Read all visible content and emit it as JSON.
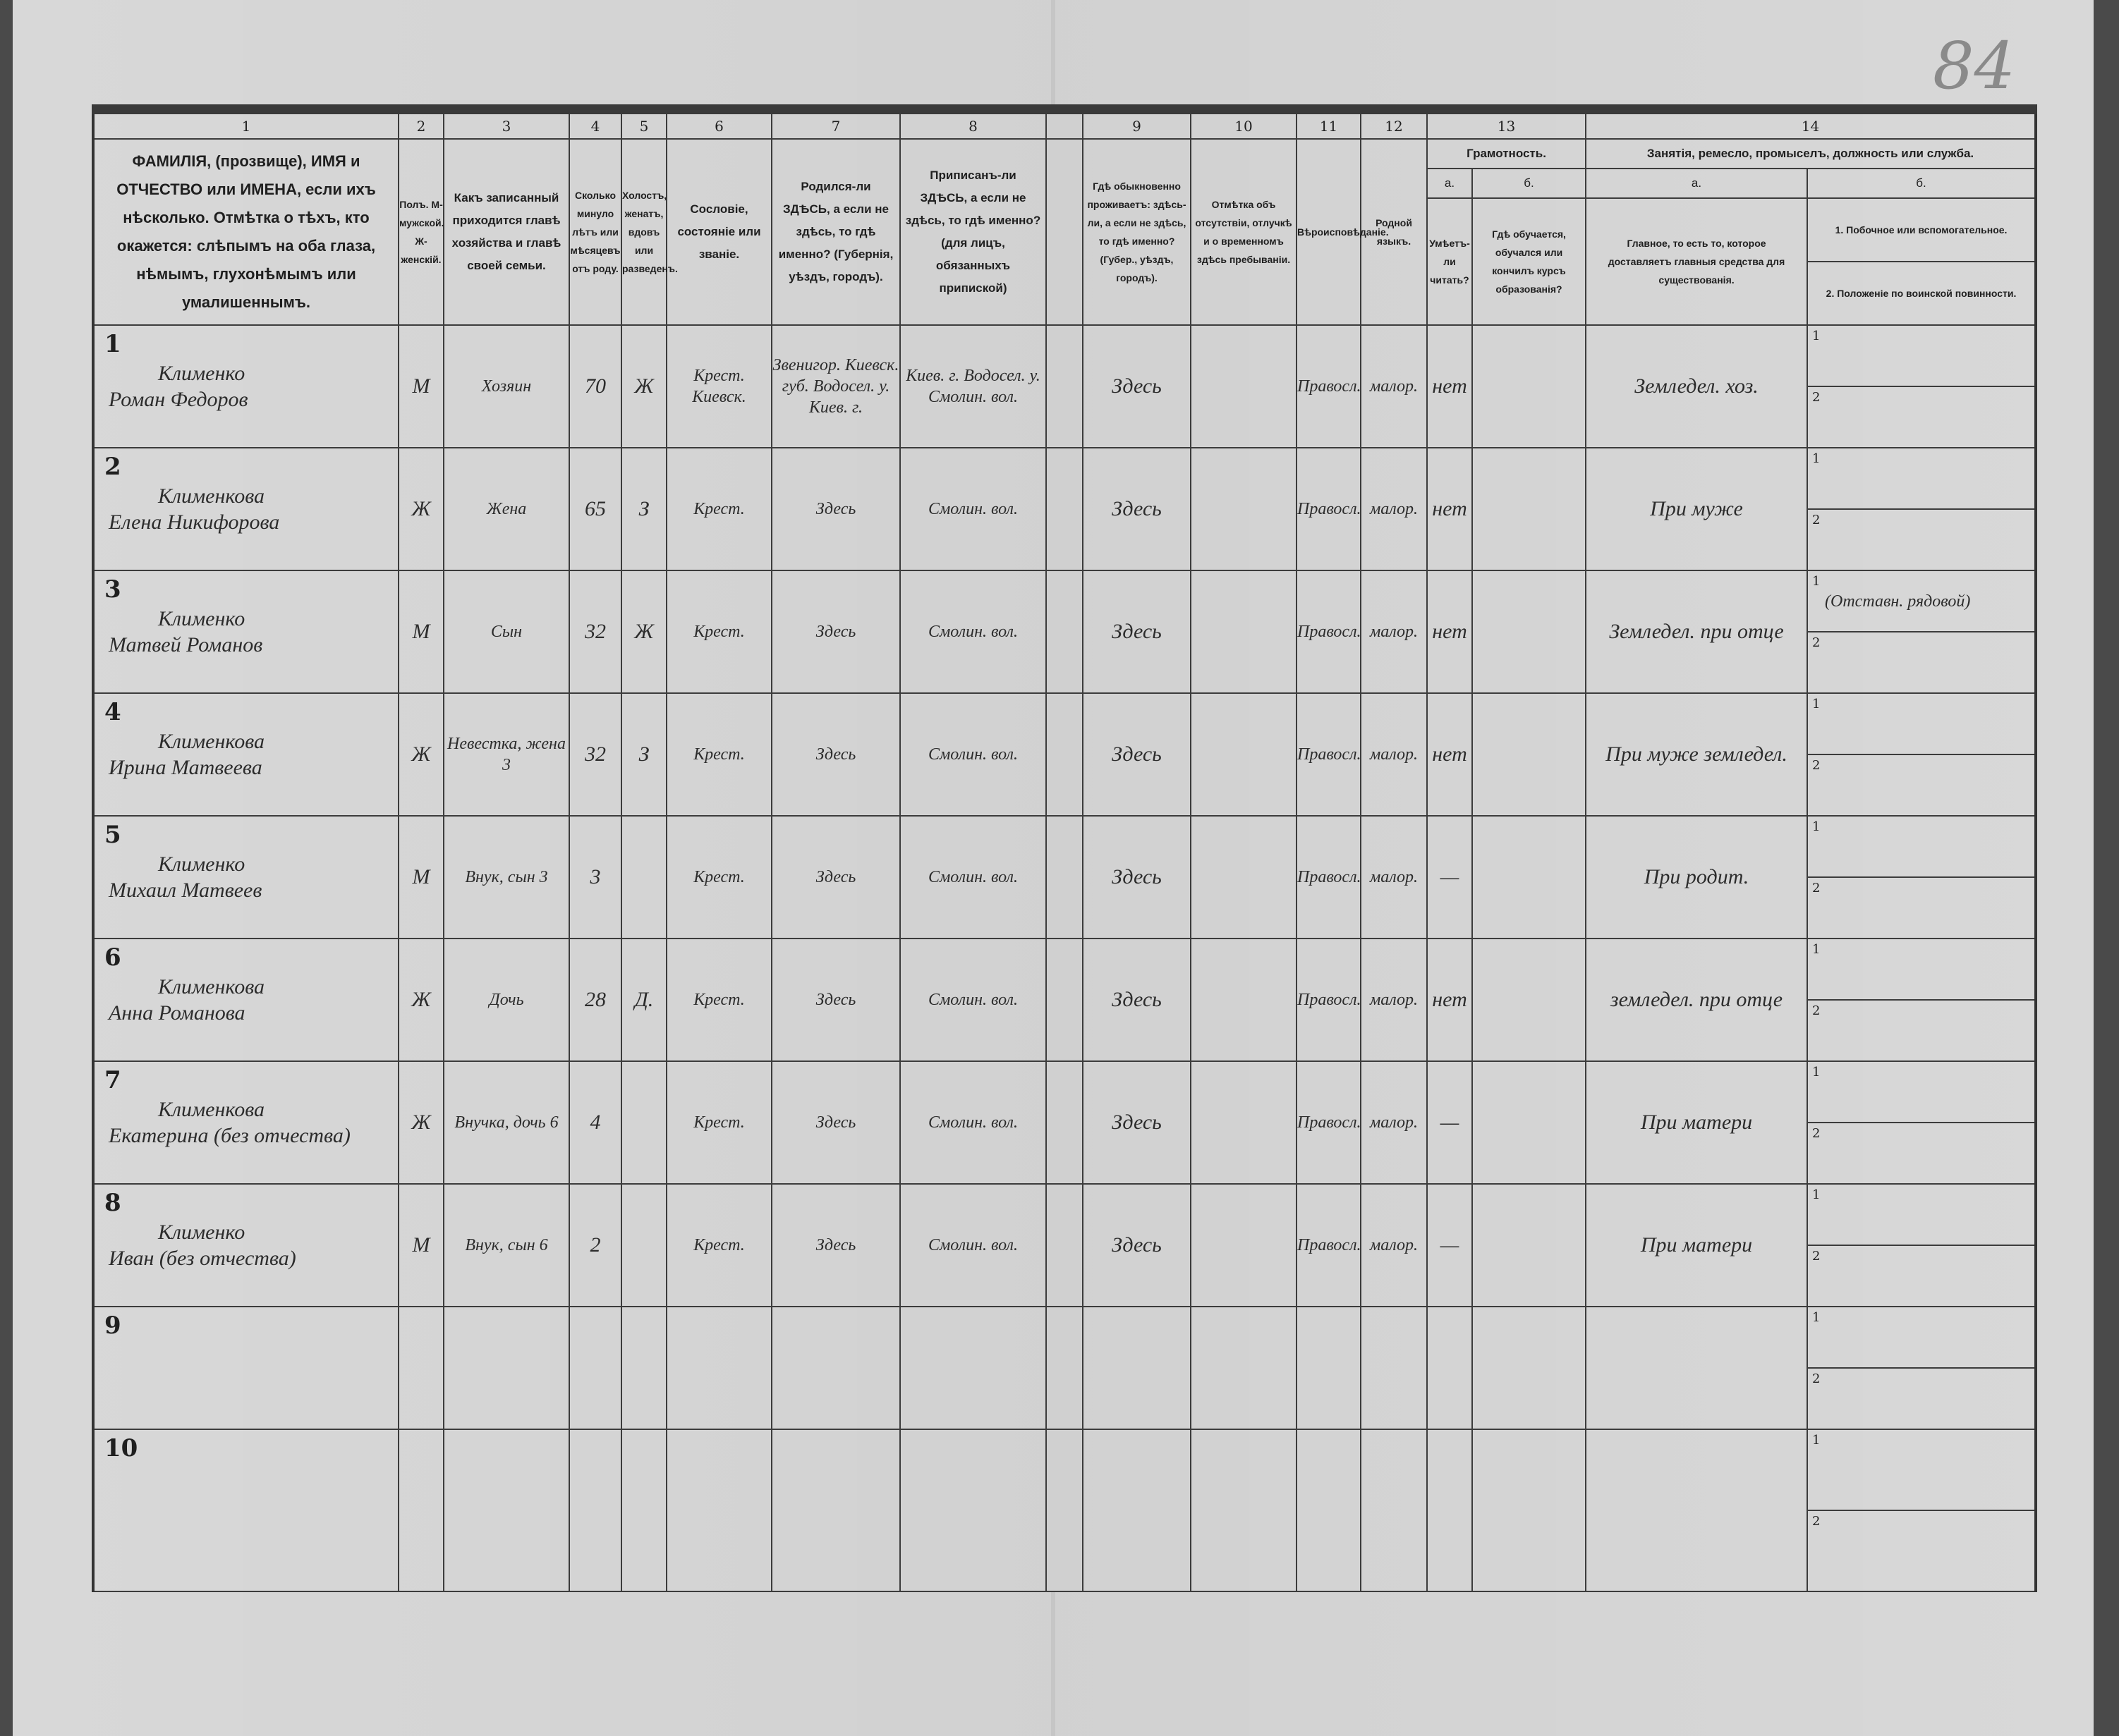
{
  "page_number": "84",
  "header": {
    "column_numbers": [
      "1",
      "2",
      "3",
      "4",
      "5",
      "6",
      "7",
      "8",
      "",
      "9",
      "10",
      "11",
      "12",
      "13",
      "14"
    ],
    "col1": "ФАМИЛІЯ, (прозвище), ИМЯ и ОТЧЕСТВО или ИМЕНА, если ихъ нѣсколько. Отмѣтка о тѣхъ, кто окажется: слѣпымъ на оба глаза, нѣмымъ, глухонѣмымъ или умалишеннымъ.",
    "col2": "Полъ. М-мужской. Ж-женскій.",
    "col3": "Какъ записанный приходится главѣ хозяйства и главѣ своей семьи.",
    "col4": "Сколько минуло лѣтъ или мѣсяцевъ отъ роду.",
    "col5": "Холостъ, женатъ, вдовъ или разведенъ.",
    "col6": "Сословіе, состояніе или званіе.",
    "col7": "Родился-ли ЗДѢСЬ, а если не здѣсь, то гдѣ именно? (Губернія, уѣздъ, городъ).",
    "col8": "Приписанъ-ли ЗДѢСЬ, а если не здѣсь, то гдѣ именно? (для лицъ, обязанныхъ припиской)",
    "col9": "Гдѣ обыкновенно проживаетъ: здѣсь-ли, а если не здѣсь, то гдѣ именно? (Губер., уѣздъ, городъ).",
    "col10": "Отмѣтка объ отсутствіи, отлучкѣ и о временномъ здѣсь пребываніи.",
    "col11": "Вѣроисповѣданіе.",
    "col12": "Родной языкъ.",
    "col13_title": "Грамотность.",
    "col13a_label": "а.",
    "col13b_label": "б.",
    "col13a": "Умѣетъ-ли читать?",
    "col13b": "Гдѣ обучается, обучался или кончилъ курсъ образованія?",
    "col14_title": "Занятія, ремесло, промыселъ, должность или служба.",
    "col14a_label": "а.",
    "col14b_label": "б.",
    "col14a": "Главное, то есть то, которое доставляетъ главныя средства для существованія.",
    "col14b1": "1. Побочное или вспомогательное.",
    "col14b2": "2. Положеніе по воинской повинности."
  },
  "sub_labels": [
    "1",
    "2"
  ],
  "rows": [
    {
      "no": "1",
      "surname": "Клименко",
      "name": "Роман Федоров",
      "sex": "М",
      "relation": "Хозяин",
      "age": "70",
      "marital": "Ж",
      "estate": "Крест. Киевск.",
      "born": "Звенигор. Киевск. губ. Водосел. у. Киев. г.",
      "registered": "Киев. г. Водосел. у. Смолин. вол.",
      "residence": "Здесь",
      "absence": "",
      "religion": "Правосл.",
      "language": "малор.",
      "literate": "нет",
      "education": "",
      "occupation": "Земледел. хоз.",
      "side": "",
      "military": ""
    },
    {
      "no": "2",
      "surname": "Клименкова",
      "name": "Елена Никифорова",
      "sex": "Ж",
      "relation": "Жена",
      "age": "65",
      "marital": "З",
      "estate": "Крест.",
      "born": "Здесь",
      "registered": "Смолин. вол.",
      "residence": "Здесь",
      "absence": "",
      "religion": "Правосл.",
      "language": "малор.",
      "literate": "нет",
      "education": "",
      "occupation": "При муже",
      "side": "",
      "military": ""
    },
    {
      "no": "3",
      "surname": "Клименко",
      "name": "Матвей Романов",
      "sex": "М",
      "relation": "Сын",
      "age": "32",
      "marital": "Ж",
      "estate": "Крест.",
      "born": "Здесь",
      "registered": "Смолин. вол.",
      "residence": "Здесь",
      "absence": "",
      "religion": "Правосл.",
      "language": "малор.",
      "literate": "нет",
      "education": "",
      "occupation": "Земледел. при отце",
      "side": "(Отставн. рядовой)",
      "military": ""
    },
    {
      "no": "4",
      "surname": "Клименкова",
      "name": "Ирина Матвеева",
      "sex": "Ж",
      "relation": "Невестка, жена 3",
      "age": "32",
      "marital": "З",
      "estate": "Крест.",
      "born": "Здесь",
      "registered": "Смолин. вол.",
      "residence": "Здесь",
      "absence": "",
      "religion": "Правосл.",
      "language": "малор.",
      "literate": "нет",
      "education": "",
      "occupation": "При муже земледел.",
      "side": "",
      "military": ""
    },
    {
      "no": "5",
      "surname": "Клименко",
      "name": "Михаил Матвеев",
      "sex": "М",
      "relation": "Внук, сын 3",
      "age": "3",
      "marital": "",
      "estate": "Крест.",
      "born": "Здесь",
      "registered": "Смолин. вол.",
      "residence": "Здесь",
      "absence": "",
      "religion": "Правосл.",
      "language": "малор.",
      "literate": "—",
      "education": "",
      "occupation": "При родит.",
      "side": "",
      "military": ""
    },
    {
      "no": "6",
      "surname": "Клименкова",
      "name": "Анна Романова",
      "sex": "Ж",
      "relation": "Дочь",
      "age": "28",
      "marital": "Д.",
      "estate": "Крест.",
      "born": "Здесь",
      "registered": "Смолин. вол.",
      "residence": "Здесь",
      "absence": "",
      "religion": "Правосл.",
      "language": "малор.",
      "literate": "нет",
      "education": "",
      "occupation": "земледел. при отце",
      "side": "",
      "military": ""
    },
    {
      "no": "7",
      "surname": "Клименкова",
      "name": "Екатерина (без отчества)",
      "sex": "Ж",
      "relation": "Внучка, дочь 6",
      "age": "4",
      "marital": "",
      "estate": "Крест.",
      "born": "Здесь",
      "registered": "Смолин. вол.",
      "residence": "Здесь",
      "absence": "",
      "religion": "Правосл.",
      "language": "малор.",
      "literate": "—",
      "education": "",
      "occupation": "При матери",
      "side": "",
      "military": ""
    },
    {
      "no": "8",
      "surname": "Клименко",
      "name": "Иван (без отчества)",
      "sex": "М",
      "relation": "Внук, сын 6",
      "age": "2",
      "marital": "",
      "estate": "Крест.",
      "born": "Здесь",
      "registered": "Смолин. вол.",
      "residence": "Здесь",
      "absence": "",
      "religion": "Правосл.",
      "language": "малор.",
      "literate": "—",
      "education": "",
      "occupation": "При матери",
      "side": "",
      "military": ""
    },
    {
      "no": "9",
      "surname": "",
      "name": "",
      "sex": "",
      "relation": "",
      "age": "",
      "marital": "",
      "estate": "",
      "born": "",
      "registered": "",
      "residence": "",
      "absence": "",
      "religion": "",
      "language": "",
      "literate": "",
      "education": "",
      "occupation": "",
      "side": "",
      "military": ""
    },
    {
      "no": "10",
      "surname": "",
      "name": "",
      "sex": "",
      "relation": "",
      "age": "",
      "marital": "",
      "estate": "",
      "born": "",
      "registered": "",
      "residence": "",
      "absence": "",
      "religion": "",
      "language": "",
      "literate": "",
      "education": "",
      "occupation": "",
      "side": "",
      "military": ""
    }
  ]
}
